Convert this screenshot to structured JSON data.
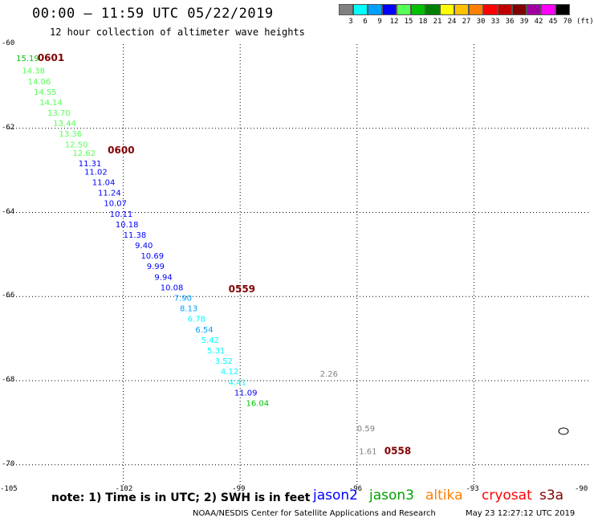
{
  "header": {
    "title": "00:00 – 11:59 UTC 05/22/2019",
    "subtitle": "12 hour collection of altimeter wave heights"
  },
  "scale": {
    "unit": "(ft)",
    "bins": [
      {
        "label": "3",
        "color": "#808080"
      },
      {
        "label": "6",
        "color": "#00ffff"
      },
      {
        "label": "9",
        "color": "#00a0ff"
      },
      {
        "label": "12",
        "color": "#0000ff"
      },
      {
        "label": "15",
        "color": "#55ff55"
      },
      {
        "label": "18",
        "color": "#00c000"
      },
      {
        "label": "21",
        "color": "#008000"
      },
      {
        "label": "24",
        "color": "#ffff00"
      },
      {
        "label": "27",
        "color": "#ffc000"
      },
      {
        "label": "30",
        "color": "#ff8000"
      },
      {
        "label": "33",
        "color": "#ff0000"
      },
      {
        "label": "36",
        "color": "#c00000"
      },
      {
        "label": "39",
        "color": "#800000"
      },
      {
        "label": "42",
        "color": "#a000a0"
      },
      {
        "label": "45",
        "color": "#ff00ff"
      },
      {
        "label": "70",
        "color": "#000000"
      }
    ]
  },
  "axes": {
    "lon_ticks": [
      "-105",
      "-102",
      "-99",
      "-96",
      "-93",
      "-90"
    ],
    "lat_ticks": [
      "-60",
      "-62",
      "-64",
      "-66",
      "-68",
      "-70"
    ]
  },
  "chart_data": {
    "type": "scatter",
    "xlabel": "",
    "ylabel": "",
    "xlim": [
      -105,
      -90
    ],
    "ylim": [
      -70.5,
      -60
    ],
    "grid": true,
    "time_labels": [
      {
        "text": "0601",
        "lon": -104.2,
        "lat": -60.4
      },
      {
        "text": "0600",
        "lon": -102.4,
        "lat": -62.6
      },
      {
        "text": "0559",
        "lon": -99.3,
        "lat": -65.9
      },
      {
        "text": "0558",
        "lon": -95.3,
        "lat": -69.75
      }
    ],
    "points": [
      {
        "v": "15.19",
        "lon": -104.75,
        "lat": -60.4,
        "c": "#00c000"
      },
      {
        "v": "14.38",
        "lon": -104.6,
        "lat": -60.7,
        "c": "#55ff55"
      },
      {
        "v": "14.06",
        "lon": -104.45,
        "lat": -60.95,
        "c": "#55ff55"
      },
      {
        "v": "14.55",
        "lon": -104.3,
        "lat": -61.2,
        "c": "#55ff55"
      },
      {
        "v": "14.14",
        "lon": -104.15,
        "lat": -61.45,
        "c": "#55ff55"
      },
      {
        "v": "13.70",
        "lon": -103.95,
        "lat": -61.7,
        "c": "#55ff55"
      },
      {
        "v": "13.44",
        "lon": -103.8,
        "lat": -61.95,
        "c": "#55ff55"
      },
      {
        "v": "13.36",
        "lon": -103.65,
        "lat": -62.2,
        "c": "#55ff55"
      },
      {
        "v": "12.50",
        "lon": -103.5,
        "lat": -62.45,
        "c": "#55ff55"
      },
      {
        "v": "12.62",
        "lon": -103.3,
        "lat": -62.65,
        "c": "#55ff55"
      },
      {
        "v": "11.31",
        "lon": -103.15,
        "lat": -62.9,
        "c": "#0000ff"
      },
      {
        "v": "11.02",
        "lon": -103.0,
        "lat": -63.1,
        "c": "#0000ff"
      },
      {
        "v": "11.04",
        "lon": -102.8,
        "lat": -63.35,
        "c": "#0000ff"
      },
      {
        "v": "11.24",
        "lon": -102.65,
        "lat": -63.6,
        "c": "#0000ff"
      },
      {
        "v": "10.07",
        "lon": -102.5,
        "lat": -63.85,
        "c": "#0000ff"
      },
      {
        "v": "10.11",
        "lon": -102.35,
        "lat": -64.1,
        "c": "#0000ff"
      },
      {
        "v": "10.18",
        "lon": -102.2,
        "lat": -64.35,
        "c": "#0000ff"
      },
      {
        "v": "11.38",
        "lon": -102.0,
        "lat": -64.6,
        "c": "#0000ff"
      },
      {
        "v": "9.40",
        "lon": -101.7,
        "lat": -64.85,
        "c": "#0000ff"
      },
      {
        "v": "10.69",
        "lon": -101.55,
        "lat": -65.1,
        "c": "#0000ff"
      },
      {
        "v": "9.99",
        "lon": -101.4,
        "lat": -65.35,
        "c": "#0000ff"
      },
      {
        "v": "9.94",
        "lon": -101.2,
        "lat": -65.6,
        "c": "#0000ff"
      },
      {
        "v": "10.08",
        "lon": -101.05,
        "lat": -65.85,
        "c": "#0000ff"
      },
      {
        "v": "7.90",
        "lon": -100.7,
        "lat": -66.1,
        "c": "#00a0ff"
      },
      {
        "v": "8.13",
        "lon": -100.55,
        "lat": -66.35,
        "c": "#00a0ff"
      },
      {
        "v": "6.78",
        "lon": -100.35,
        "lat": -66.6,
        "c": "#00ffff"
      },
      {
        "v": "6.54",
        "lon": -100.15,
        "lat": -66.85,
        "c": "#00a0ff"
      },
      {
        "v": "5.42",
        "lon": -100.0,
        "lat": -67.1,
        "c": "#00ffff"
      },
      {
        "v": "5.31",
        "lon": -99.85,
        "lat": -67.35,
        "c": "#00ffff"
      },
      {
        "v": "3.52",
        "lon": -99.65,
        "lat": -67.6,
        "c": "#00ffff"
      },
      {
        "v": "4.12",
        "lon": -99.5,
        "lat": -67.85,
        "c": "#00ffff"
      },
      {
        "v": "4.41",
        "lon": -99.3,
        "lat": -68.1,
        "c": "#00ffff"
      },
      {
        "v": "11.09",
        "lon": -99.15,
        "lat": -68.35,
        "c": "#0000ff"
      },
      {
        "v": "16.04",
        "lon": -98.85,
        "lat": -68.6,
        "c": "#00c000"
      },
      {
        "v": "2.26",
        "lon": -96.95,
        "lat": -67.9,
        "c": "#808080"
      },
      {
        "v": "0.59",
        "lon": -96.0,
        "lat": -69.2,
        "c": "#808080"
      },
      {
        "v": "1.61",
        "lon": -95.95,
        "lat": -69.75,
        "c": "#808080"
      }
    ]
  },
  "footer": {
    "note": "note: 1) Time is in UTC; 2) SWH is in feet",
    "satellites": [
      {
        "name": "jason2",
        "color": "#0000ff"
      },
      {
        "name": "jason3",
        "color": "#00a000"
      },
      {
        "name": "altika",
        "color": "#ff8000"
      },
      {
        "name": "cryosat",
        "color": "#ff0000"
      },
      {
        "name": "s3a",
        "color": "#800000"
      }
    ],
    "credit": "NOAA/NESDIS Center for Satellite Applications and Research",
    "timestamp": "May 23 12:27:12 UTC 2019"
  }
}
